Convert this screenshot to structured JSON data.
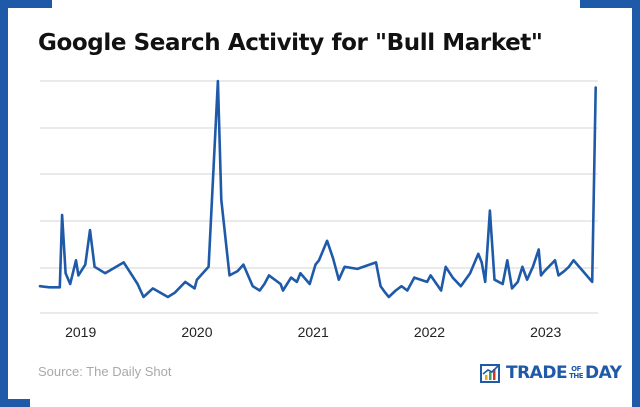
{
  "title": "Google Search Activity for \"Bull Market\"",
  "source": "Source: The Daily Shot",
  "brand": {
    "pre": "TRADE",
    "of": "OF",
    "the": "THE",
    "post": "DAY",
    "icon": "bar-chart-logo-icon"
  },
  "colors": {
    "line": "#1f5aa8",
    "grid": "#d6d6d6",
    "frame": "#1f5aa8",
    "axis_text": "#222222"
  },
  "chart_data": {
    "type": "line",
    "title": "Google Search Activity for \"Bull Market\"",
    "xlabel": "",
    "ylabel": "",
    "grid": true,
    "xlim": [
      2018.65,
      2023.45
    ],
    "ylim": [
      0,
      100
    ],
    "x_ticks": [
      2019,
      2020,
      2021,
      2022,
      2023
    ],
    "x_tick_labels": [
      "2019",
      "2020",
      "2021",
      "2022",
      "2023"
    ],
    "series": [
      {
        "x": [
          2018.65,
          2018.73,
          2018.82,
          2018.84,
          2018.87,
          2018.91,
          2018.96,
          2018.98,
          2019.04,
          2019.08,
          2019.12,
          2019.21,
          2019.37,
          2019.49,
          2019.54,
          2019.62,
          2019.75,
          2019.81,
          2019.9,
          2019.98,
          2020.0,
          2020.1,
          2020.18,
          2020.21,
          2020.28,
          2020.35,
          2020.4,
          2020.48,
          2020.54,
          2020.58,
          2020.62,
          2020.72,
          2020.74,
          2020.81,
          2020.86,
          2020.89,
          2020.97,
          2021.02,
          2021.05,
          2021.12,
          2021.17,
          2021.22,
          2021.27,
          2021.38,
          2021.54,
          2021.58,
          2021.62,
          2021.65,
          2021.71,
          2021.76,
          2021.81,
          2021.87,
          2021.98,
          2022.01,
          2022.1,
          2022.14,
          2022.2,
          2022.27,
          2022.35,
          2022.42,
          2022.45,
          2022.48,
          2022.52,
          2022.56,
          2022.63,
          2022.67,
          2022.71,
          2022.76,
          2022.8,
          2022.84,
          2022.89,
          2022.94,
          2022.96,
          2022.99,
          2023.08,
          2023.11,
          2023.16,
          2023.2,
          2023.24,
          2023.4,
          2023.43
        ],
        "y": [
          5,
          4.5,
          4.5,
          38,
          11,
          6,
          17,
          10,
          15,
          31,
          14,
          11,
          16,
          6,
          0,
          4,
          0,
          2,
          7,
          4,
          8,
          14,
          100,
          45,
          10,
          12,
          15,
          5,
          3,
          6,
          10,
          6,
          3,
          9,
          7,
          11,
          6,
          15,
          17,
          26,
          18,
          8,
          14,
          13,
          16,
          5,
          2,
          0,
          3,
          5,
          3,
          9,
          7,
          10,
          3,
          14,
          9,
          5,
          11,
          20,
          16,
          7,
          40,
          8,
          6,
          17,
          4,
          7,
          14,
          8,
          14,
          22,
          10,
          12,
          17,
          10,
          12,
          14,
          17,
          7,
          97
        ]
      }
    ]
  }
}
